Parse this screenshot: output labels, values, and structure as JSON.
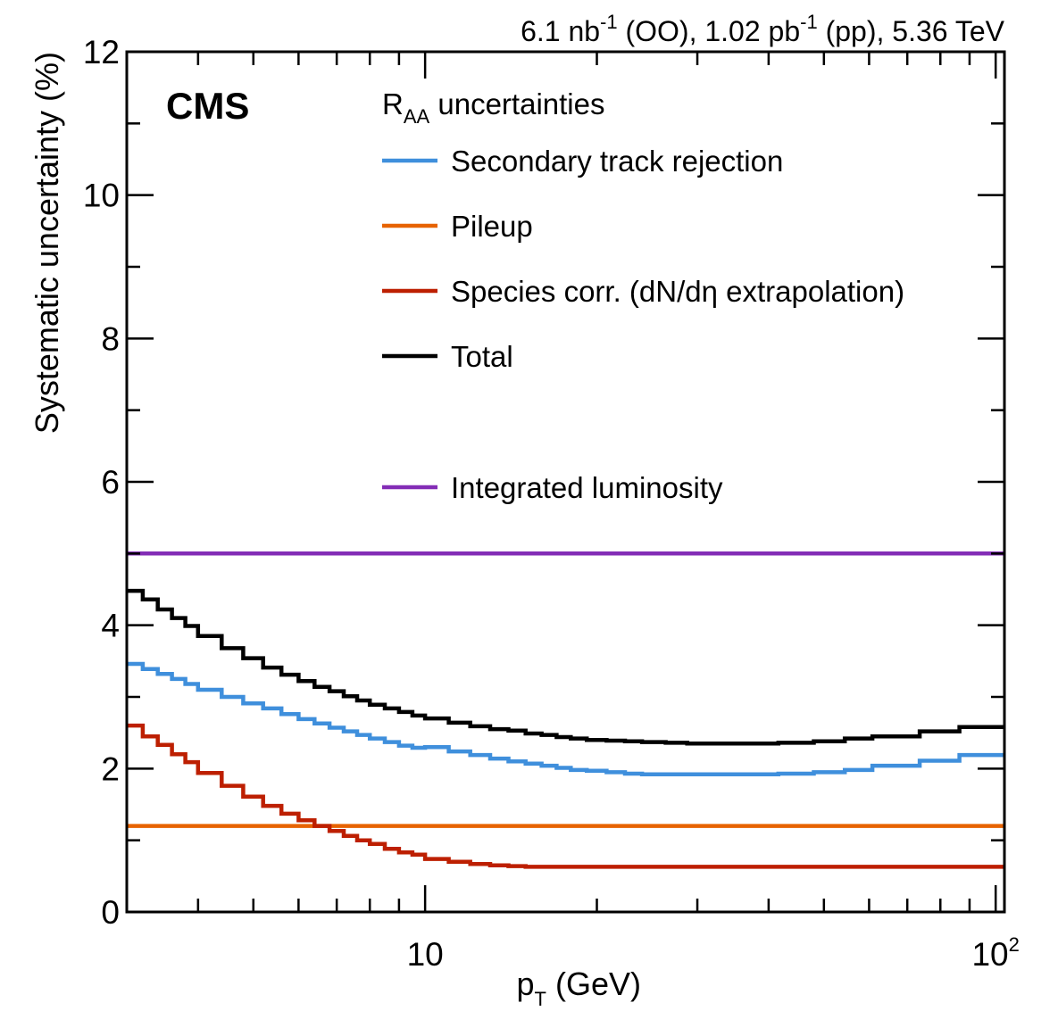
{
  "chart_data": {
    "type": "line",
    "style": "step-histogram",
    "title": "",
    "header": {
      "lumi_oo_value": "6.1 nb",
      "lumi_oo_exp": "-1",
      "lumi_oo_system": " (OO), ",
      "lumi_pp_value": "1.02 pb",
      "lumi_pp_exp": "-1",
      "lumi_pp_system": " (pp), ",
      "energy": "5.36 TeV"
    },
    "experiment_label": "CMS",
    "xlabel": {
      "main": "p",
      "sub": "T",
      "rest": " (GeV)"
    },
    "ylabel": "Systematic uncertainty (%)",
    "xscale": "log",
    "xlim": [
      3.0,
      103.6
    ],
    "ylim": [
      0,
      12
    ],
    "x_major_ticks": [
      10,
      100
    ],
    "x_tick_labels": [
      {
        "value": 10,
        "base": "10",
        "exp": ""
      },
      {
        "value": 100,
        "base": "10",
        "exp": "2"
      }
    ],
    "x_minor_ticks": [
      4,
      5,
      6,
      7,
      8,
      9,
      20,
      30,
      40,
      50,
      60,
      70,
      80,
      90
    ],
    "y_major_ticks": [
      0,
      2,
      4,
      6,
      8,
      10,
      12
    ],
    "y_tick_labels": [
      "0",
      "2",
      "4",
      "6",
      "8",
      "10",
      "12"
    ],
    "y_minor_ticks": [
      1,
      3,
      5,
      7,
      9,
      11
    ],
    "grid": false,
    "legend": {
      "placement": "top-center",
      "header_main": "R",
      "header_sub": "AA",
      "header_rest": " uncertainties",
      "entries": [
        {
          "label": "Secondary track rejection",
          "color": "#3f8fdc"
        },
        {
          "label": "Pileup",
          "color": "#e76300"
        },
        {
          "label": "Species corr. (dN/dη extrapolation)",
          "color": "#bd1f01"
        },
        {
          "label": "Total",
          "color": "#000000"
        },
        {
          "label": "Integrated luminosity",
          "color": "#832db6",
          "separate": true
        }
      ]
    },
    "bin_edges": [
      3.0,
      3.2,
      3.4,
      3.6,
      3.8,
      4.0,
      4.4,
      4.8,
      5.2,
      5.6,
      6.0,
      6.4,
      6.8,
      7.2,
      7.6,
      8.0,
      8.5,
      9.0,
      9.5,
      10,
      11,
      12,
      13,
      14,
      15,
      16,
      17,
      18,
      19.2,
      20.8,
      22.4,
      24.0,
      26.4,
      28.8,
      32.0,
      35.2,
      41.6,
      48.0,
      54.4,
      60.8,
      73.6,
      86.4,
      103.6
    ],
    "series": [
      {
        "name": "Secondary track rejection",
        "color": "#3f8fdc",
        "values": [
          3.46,
          3.39,
          3.32,
          3.25,
          3.18,
          3.1,
          3.0,
          2.91,
          2.84,
          2.76,
          2.69,
          2.63,
          2.57,
          2.52,
          2.47,
          2.42,
          2.37,
          2.32,
          2.29,
          2.3,
          2.24,
          2.19,
          2.14,
          2.1,
          2.07,
          2.04,
          2.01,
          1.98,
          1.97,
          1.95,
          1.93,
          1.92,
          1.92,
          1.92,
          1.92,
          1.92,
          1.93,
          1.95,
          1.98,
          2.04,
          2.11,
          2.19
        ]
      },
      {
        "name": "Pileup",
        "color": "#e76300",
        "values": [
          1.2,
          1.2,
          1.2,
          1.2,
          1.2,
          1.2,
          1.2,
          1.2,
          1.2,
          1.2,
          1.2,
          1.2,
          1.2,
          1.2,
          1.2,
          1.2,
          1.2,
          1.2,
          1.2,
          1.2,
          1.2,
          1.2,
          1.2,
          1.2,
          1.2,
          1.2,
          1.2,
          1.2,
          1.2,
          1.2,
          1.2,
          1.2,
          1.2,
          1.2,
          1.2,
          1.2,
          1.2,
          1.2,
          1.2,
          1.2,
          1.2,
          1.2
        ]
      },
      {
        "name": "Species corr. (dN/dη extrapolation)",
        "color": "#bd1f01",
        "values": [
          2.6,
          2.45,
          2.33,
          2.2,
          2.09,
          1.94,
          1.76,
          1.61,
          1.48,
          1.37,
          1.28,
          1.2,
          1.13,
          1.06,
          1.0,
          0.95,
          0.88,
          0.83,
          0.8,
          0.74,
          0.7,
          0.67,
          0.65,
          0.64,
          0.63,
          0.63,
          0.63,
          0.63,
          0.63,
          0.63,
          0.63,
          0.63,
          0.63,
          0.63,
          0.63,
          0.63,
          0.63,
          0.63,
          0.63,
          0.63,
          0.63,
          0.63
        ]
      },
      {
        "name": "Total",
        "color": "#000000",
        "values": [
          4.48,
          4.36,
          4.22,
          4.1,
          3.99,
          3.85,
          3.68,
          3.54,
          3.41,
          3.31,
          3.22,
          3.14,
          3.08,
          3.01,
          2.95,
          2.89,
          2.84,
          2.79,
          2.74,
          2.7,
          2.64,
          2.59,
          2.55,
          2.53,
          2.49,
          2.47,
          2.44,
          2.42,
          2.4,
          2.39,
          2.38,
          2.37,
          2.36,
          2.35,
          2.35,
          2.35,
          2.36,
          2.38,
          2.42,
          2.45,
          2.52,
          2.58
        ]
      },
      {
        "name": "Integrated luminosity",
        "color": "#832db6",
        "values": [
          5.0,
          5.0,
          5.0,
          5.0,
          5.0,
          5.0,
          5.0,
          5.0,
          5.0,
          5.0,
          5.0,
          5.0,
          5.0,
          5.0,
          5.0,
          5.0,
          5.0,
          5.0,
          5.0,
          5.0,
          5.0,
          5.0,
          5.0,
          5.0,
          5.0,
          5.0,
          5.0,
          5.0,
          5.0,
          5.0,
          5.0,
          5.0,
          5.0,
          5.0,
          5.0,
          5.0,
          5.0,
          5.0,
          5.0,
          5.0,
          5.0,
          5.0
        ]
      }
    ]
  }
}
